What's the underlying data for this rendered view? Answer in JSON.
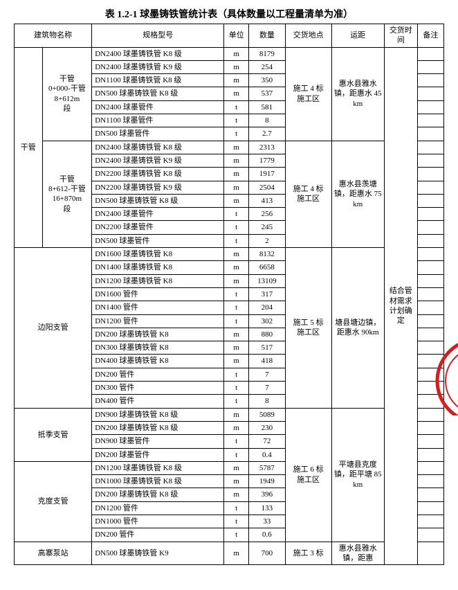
{
  "title": "表 1.2-1 球墨铸铁管统计表（具体数量以工程量清单为准）",
  "headers": {
    "name": "建筑物名称",
    "spec": "规格型号",
    "unit": "单位",
    "qty": "数量",
    "loc": "交货地点",
    "dist": "运距",
    "time": "交货时间",
    "note": "备注"
  },
  "group1_name1": "干管",
  "group1a_name2": "干管\n0+000-干管\n8+612m\n段",
  "group1a_loc": "施工 4 标\n施工区",
  "group1a_dist": "惠水县雅水镇，距惠水 45km",
  "group1a_rows": [
    {
      "spec": "DN2400 球墨铸铁管 K8 级",
      "unit": "m",
      "qty": "8179"
    },
    {
      "spec": "DN2400 球墨铸铁管 K9 级",
      "unit": "m",
      "qty": "254"
    },
    {
      "spec": "DN1100 球墨铸铁管 K8 级",
      "unit": "m",
      "qty": "350"
    },
    {
      "spec": "DN500 球墨铸铁管 K8 级",
      "unit": "m",
      "qty": "537"
    },
    {
      "spec": "DN2400 球墨管件",
      "unit": "t",
      "qty": "581"
    },
    {
      "spec": "DN1100 球墨管件",
      "unit": "t",
      "qty": "8"
    },
    {
      "spec": "DN500 球墨管件",
      "unit": "t",
      "qty": "2.7"
    }
  ],
  "group1b_name2": "干管\n8+612-干管\n16+870m\n段",
  "group1b_loc": "施工 4 标\n施工区",
  "group1b_dist": "惠水县羡塘镇，距惠水 75km",
  "group1b_rows": [
    {
      "spec": "DN2400 球墨铸铁管 K8 级",
      "unit": "m",
      "qty": "2313"
    },
    {
      "spec": "DN2400 球墨铸铁管 K9 级",
      "unit": "m",
      "qty": "1779"
    },
    {
      "spec": "DN2200 球墨铸铁管 K8 级",
      "unit": "m",
      "qty": "1917"
    },
    {
      "spec": "DN2200 球墨铸铁管 K9 级",
      "unit": "m",
      "qty": "2504"
    },
    {
      "spec": "DN500 球墨铸铁管 K8 级",
      "unit": "m",
      "qty": "413"
    },
    {
      "spec": "DN2400 球墨管件",
      "unit": "t",
      "qty": "256"
    },
    {
      "spec": "DN2200 球墨管件",
      "unit": "t",
      "qty": "245"
    },
    {
      "spec": "DN500 球墨管件",
      "unit": "t",
      "qty": "2"
    }
  ],
  "group2_name": "边阳支管",
  "group2_loc": "施工 5 标\n施工区",
  "group2_dist": "塘县塘边镇，距惠水 90km",
  "group2_rows": [
    {
      "spec": "DN1600 球墨铸铁管 K8",
      "unit": "m",
      "qty": "8132"
    },
    {
      "spec": "DN1400 球墨铸铁管 K8",
      "unit": "m",
      "qty": "6658"
    },
    {
      "spec": "DN1200 球墨铸铁管 K8",
      "unit": "m",
      "qty": "13109"
    },
    {
      "spec": "DN1600 管件",
      "unit": "t",
      "qty": "317"
    },
    {
      "spec": "DN1400 管件",
      "unit": "t",
      "qty": "204"
    },
    {
      "spec": "DN1200 管件",
      "unit": "t",
      "qty": "302"
    },
    {
      "spec": "DN200 球墨铸铁管 K8",
      "unit": "m",
      "qty": "880"
    },
    {
      "spec": "DN300 球墨铸铁管 K8",
      "unit": "m",
      "qty": "517"
    },
    {
      "spec": "DN400 球墨铸铁管 K8",
      "unit": "m",
      "qty": "418"
    },
    {
      "spec": "DN200 管件",
      "unit": "t",
      "qty": "7"
    },
    {
      "spec": "DN300 管件",
      "unit": "t",
      "qty": "7"
    },
    {
      "spec": "DN400 管件",
      "unit": "t",
      "qty": "8"
    }
  ],
  "group3_name": "抵季支管",
  "group3_rows": [
    {
      "spec": "DN900 球墨铸铁管 K8 级",
      "unit": "m",
      "qty": "5089"
    },
    {
      "spec": "DN200 球墨铸铁管 K8 级",
      "unit": "m",
      "qty": "230"
    },
    {
      "spec": "DN900 球墨管件",
      "unit": "t",
      "qty": "72"
    },
    {
      "spec": "DN200 球墨管件",
      "unit": "t",
      "qty": "0.4"
    }
  ],
  "group34_loc": "施工 6 标\n施工区",
  "group34_dist": "平塘县克度镇，距平塘 85km",
  "group4_name": "克度支管",
  "group4_rows": [
    {
      "spec": "DN1200 球墨铸铁管 K8 级",
      "unit": "m",
      "qty": "5787"
    },
    {
      "spec": "DN1000 球墨铸铁管 K8 级",
      "unit": "m",
      "qty": "1949"
    },
    {
      "spec": "DN200 球墨铸铁管 K8 级",
      "unit": "m",
      "qty": "396"
    },
    {
      "spec": "DN1200 管件",
      "unit": "t",
      "qty": "133"
    },
    {
      "spec": "DN1000 管件",
      "unit": "t",
      "qty": "33"
    },
    {
      "spec": "DN200 管件",
      "unit": "t",
      "qty": "0.6"
    }
  ],
  "group5_name": "高寨泵站",
  "group5_loc": "施工 3 标",
  "group5_dist": "惠水县雅水镇，距惠",
  "group5_rows": [
    {
      "spec": "DN500 球墨铸铁管 K9",
      "unit": "m",
      "qty": "700"
    }
  ],
  "time_text": "结合管材需求计划确定"
}
